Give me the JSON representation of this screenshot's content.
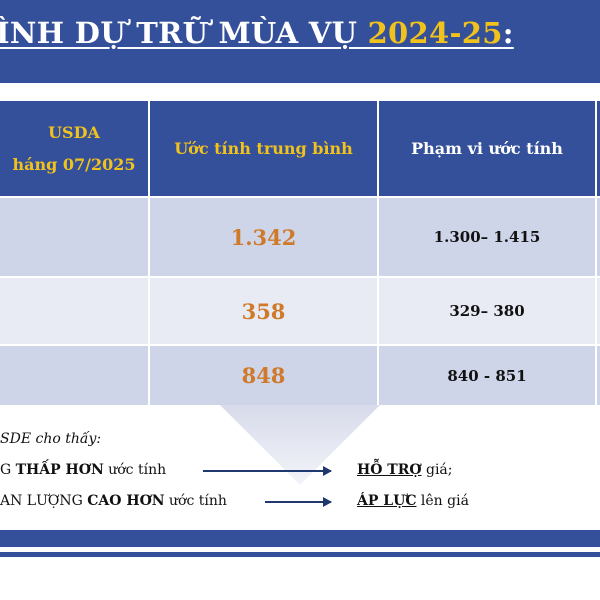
{
  "title": {
    "prefix": "ÌNH DỰ TRỮ MÙA VỤ ",
    "year": "2024-25",
    "suffix": ":"
  },
  "table": {
    "headers": {
      "col1_line1": "USDA",
      "col1_line2": "háng 07/2025",
      "col2": "Ước tính trung bình",
      "col3": "Phạm vi ước tính"
    },
    "rows": [
      {
        "average": "1.342",
        "range": "1.300– 1.415"
      },
      {
        "average": "358",
        "range": "329– 380"
      },
      {
        "average": "848",
        "range": "840 - 851"
      }
    ]
  },
  "notes": {
    "intro": "SDE cho thấy:",
    "line1": {
      "pre": "G ",
      "bold": "THẤP HƠN",
      "post": " ước tính",
      "result_bold": "HỖ TRỢ",
      "result_post": " giá;"
    },
    "line2": {
      "pre": "AN LƯỢNG ",
      "bold": "CAO HƠN",
      "post": " ước tính",
      "result_bold": "ÁP LỰC",
      "result_post": " lên giá"
    }
  },
  "colors": {
    "navy": "#34509a",
    "gold": "#f2c21c",
    "orange": "#cf7a2a",
    "row_light": "#e8ebf4",
    "row_dark": "#cfd5e9"
  }
}
